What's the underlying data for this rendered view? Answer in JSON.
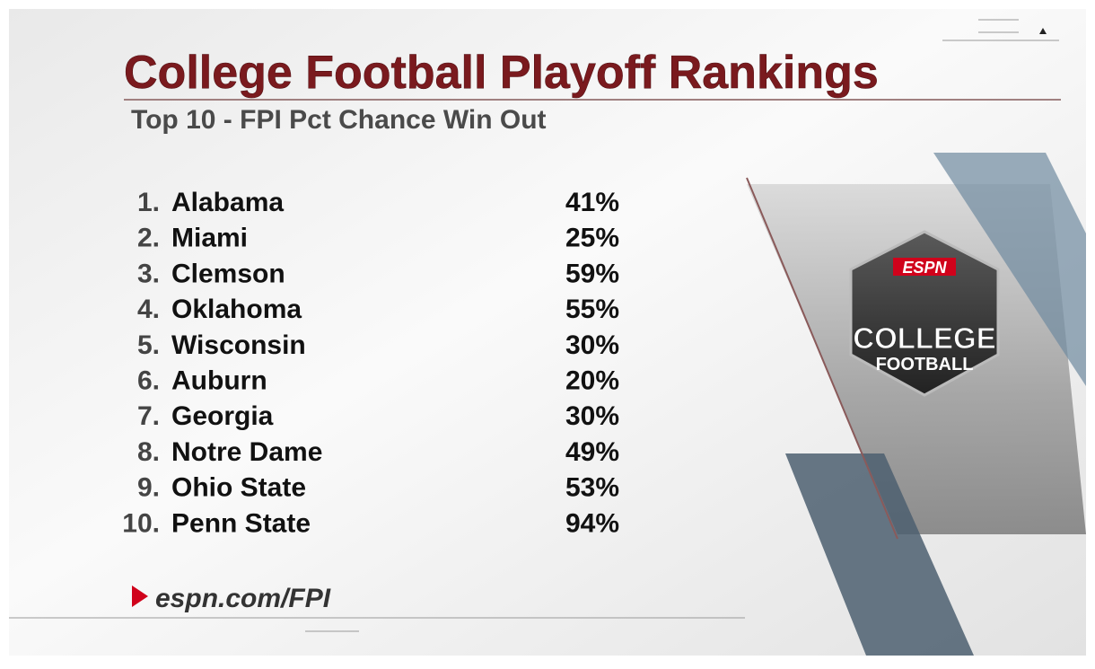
{
  "header": {
    "title": "College Football Playoff Rankings",
    "subtitle": "Top 10 - FPI Pct Chance Win Out"
  },
  "table": {
    "rows": [
      [
        "1.",
        "Alabama",
        "41%"
      ],
      [
        "2.",
        "Miami",
        "25%"
      ],
      [
        "3.",
        "Clemson",
        "59%"
      ],
      [
        "4.",
        "Oklahoma",
        "55%"
      ],
      [
        "5.",
        "Wisconsin",
        "30%"
      ],
      [
        "6.",
        "Auburn",
        "20%"
      ],
      [
        "7.",
        "Georgia",
        "30%"
      ],
      [
        "8.",
        "Notre Dame",
        "49%"
      ],
      [
        "9.",
        "Ohio State",
        "53%"
      ],
      [
        "10.",
        "Penn State",
        "94%"
      ]
    ]
  },
  "footer": {
    "link": "espn.com/FPI"
  },
  "logo": {
    "brand": "ESPN",
    "line1": "COLLEGE",
    "line2": "FOOTBALL"
  }
}
